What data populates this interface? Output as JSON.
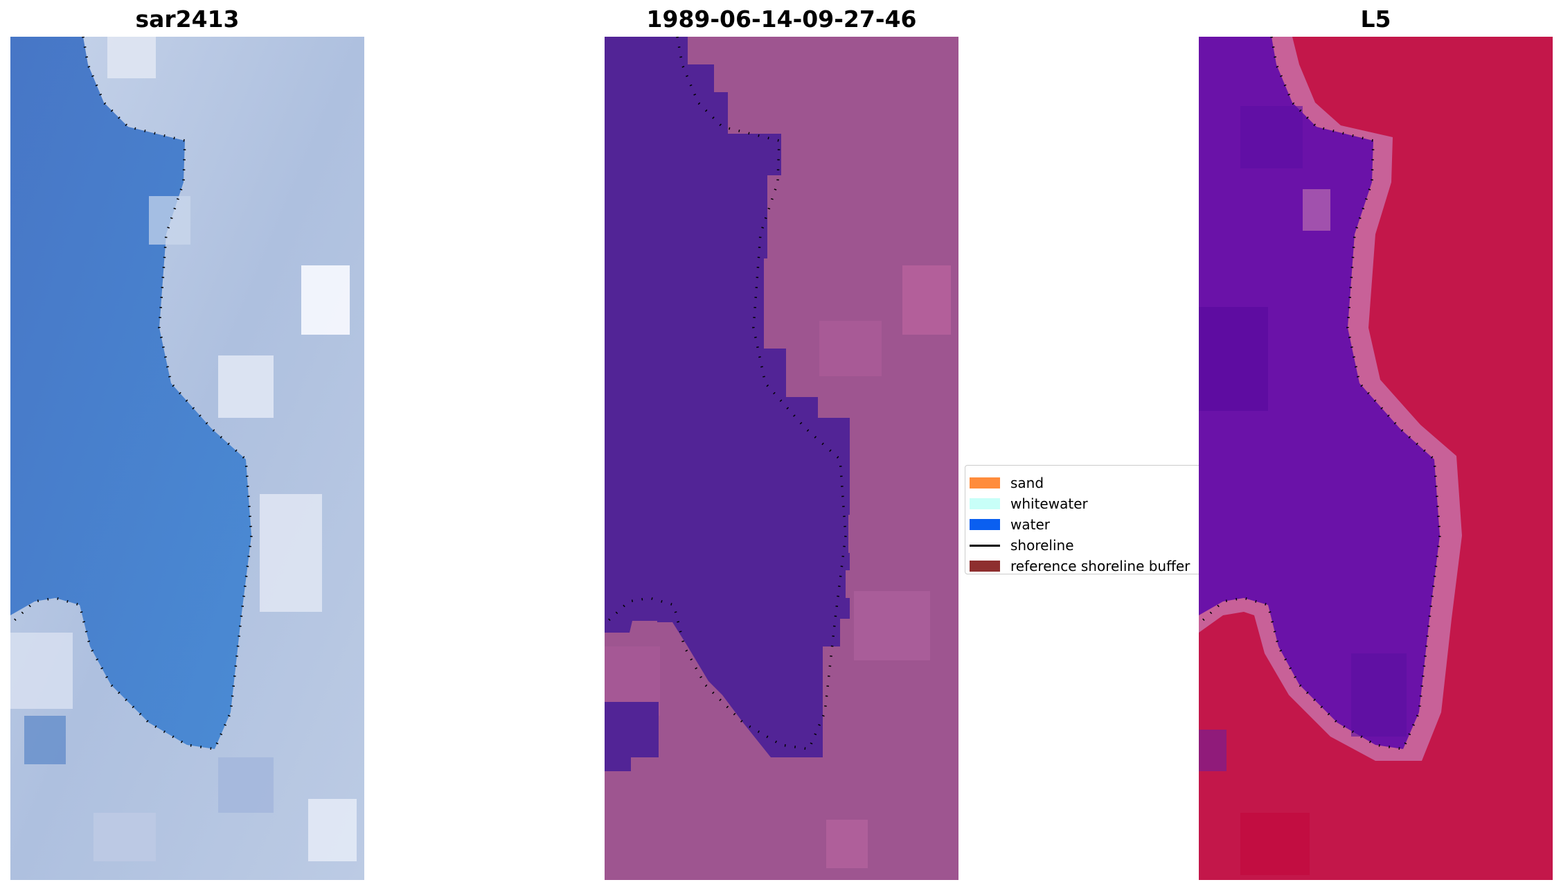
{
  "panels": [
    {
      "title": "sar2413"
    },
    {
      "title": "1989-06-14-09-27-46"
    },
    {
      "title": "L5"
    }
  ],
  "legend": {
    "items": [
      {
        "label": "sand",
        "kind": "patch",
        "color": "#ff8c3c"
      },
      {
        "label": "whitewater",
        "kind": "patch",
        "color": "#c8fff8"
      },
      {
        "label": "water",
        "kind": "patch",
        "color": "#0a5ff0"
      },
      {
        "label": "shoreline",
        "kind": "line",
        "color": "#000000"
      },
      {
        "label": "reference shoreline buffer",
        "kind": "patch",
        "color": "#8e2f2f"
      }
    ]
  },
  "colors": {
    "rgb_water": "#4a7fcb",
    "rgb_land": "#b5c7e2",
    "class_water": "#522496",
    "class_land": "#9e5590",
    "index_water": "#6a12a8",
    "index_land": "#c3174a",
    "shoreline": "#000000"
  }
}
